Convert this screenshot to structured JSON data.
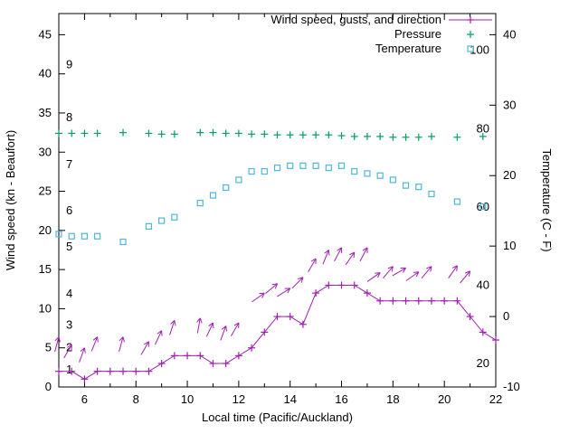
{
  "chart_data": {
    "type": "line",
    "title": "",
    "xlabel": "Local time (Pacific/Auckland)",
    "ylabel_left": "Wind speed (kn - Beaufort)",
    "ylabel_right": "Temperature (C - F)",
    "xlim": [
      5,
      22
    ],
    "x_major_ticks": [
      6,
      8,
      10,
      12,
      14,
      16,
      18,
      20,
      22
    ],
    "ylim_left": [
      0,
      47.7
    ],
    "y_left_ticks": [
      0,
      5,
      10,
      15,
      20,
      25,
      30,
      35,
      40,
      45
    ],
    "ylim_right": [
      -10,
      43
    ],
    "y_right_ticks": [
      -10,
      0,
      10,
      20,
      30,
      40
    ],
    "grid": false,
    "legend_position": "top-right-inside",
    "colors": {
      "wind": "#a020b0",
      "pressure": "#009e60",
      "temperature": "#4fb6d8",
      "axis": "#000000",
      "background": "#ffffff"
    },
    "legend": [
      {
        "label": "Wind speed, gusts, and direction",
        "series": "wind"
      },
      {
        "label": "Pressure",
        "series": "pressure"
      },
      {
        "label": "Temperature",
        "series": "temperature"
      }
    ],
    "beaufort_labels": [
      {
        "label": "1",
        "v": 2.2
      },
      {
        "label": "2",
        "v": 5.0
      },
      {
        "label": "3",
        "v": 7.9
      },
      {
        "label": "4",
        "v": 11.9
      },
      {
        "label": "5",
        "v": 17.9
      },
      {
        "label": "6",
        "v": 22.5
      },
      {
        "label": "7",
        "v": 28.4
      },
      {
        "label": "8",
        "v": 34.4
      },
      {
        "label": "9",
        "v": 41.2
      }
    ],
    "fahrenheit_labels": [
      {
        "label": "20",
        "v": 3.0
      },
      {
        "label": "40",
        "v": 13.0
      },
      {
        "label": "60",
        "v": 23.0
      },
      {
        "label": "80",
        "v": 33.0
      },
      {
        "label": "100",
        "v": 43.0
      }
    ],
    "series": {
      "wind_speed": {
        "unit": "kn",
        "x": [
          5,
          5.5,
          6,
          6.5,
          7,
          7.5,
          8,
          8.5,
          9,
          9.5,
          10,
          10.5,
          11,
          11.5,
          12,
          12.5,
          13,
          13.5,
          14,
          14.5,
          15,
          15.5,
          16,
          16.5,
          17,
          17.5,
          18,
          18.5,
          19,
          19.5,
          20,
          20.5,
          21,
          21.5,
          22
        ],
        "kn": [
          2,
          2,
          1,
          2,
          2,
          2,
          2,
          2,
          3,
          4,
          4,
          4,
          3,
          3,
          4,
          5,
          7,
          9,
          9,
          8,
          12,
          13,
          13,
          13,
          12,
          11,
          11,
          11,
          11,
          11,
          11,
          11,
          9,
          7,
          6
        ]
      },
      "gusts": {
        "unit": "kn",
        "x": [
          5,
          5.5,
          6,
          6.5,
          7.5,
          8.5,
          9,
          9.5,
          10.5,
          11,
          11.5,
          12,
          13,
          13.5,
          14,
          14.5,
          15,
          15.5,
          16,
          16.5,
          17,
          17.5,
          18,
          18.5,
          19,
          19.5,
          20.5,
          21
        ],
        "kn": [
          6.4,
          5.4,
          5.0,
          6.4,
          6.4,
          5.8,
          7.2,
          8.5,
          8.8,
          8.2,
          7.8,
          8.2,
          12.0,
          13.2,
          12.6,
          14.0,
          16.4,
          17.5,
          17.8,
          17.2,
          17.8,
          14.6,
          15.4,
          15.2,
          14.7,
          15.4,
          15.5,
          14.8
        ],
        "deg": [
          15,
          30,
          20,
          22,
          15,
          30,
          25,
          18,
          10,
          25,
          20,
          30,
          55,
          50,
          58,
          45,
          30,
          22,
          28,
          35,
          28,
          55,
          40,
          60,
          55,
          40,
          35,
          40
        ]
      },
      "pressure": {
        "note": "plotted position on left axis scale",
        "x": [
          5,
          5.5,
          6,
          6.5,
          7.5,
          8.5,
          9,
          9.5,
          10.5,
          11,
          11.5,
          12,
          12.5,
          13,
          13.5,
          14,
          14.5,
          15,
          15.5,
          16,
          16.5,
          17,
          17.5,
          18,
          18.5,
          19,
          19.5,
          20.5,
          21.5
        ],
        "axis_value": [
          32.4,
          32.4,
          32.4,
          32.4,
          32.5,
          32.4,
          32.3,
          32.3,
          32.5,
          32.5,
          32.4,
          32.4,
          32.3,
          32.3,
          32.2,
          32.2,
          32.2,
          32.2,
          32.2,
          32.1,
          32.0,
          32.0,
          32.0,
          31.9,
          31.9,
          31.9,
          32.0,
          31.9,
          32.0
        ]
      },
      "temperature": {
        "unit": "C",
        "x": [
          5,
          5.5,
          6,
          6.5,
          7.5,
          8.5,
          9,
          9.5,
          10.5,
          11,
          11.5,
          12,
          12.5,
          13,
          13.5,
          14,
          14.5,
          15,
          15.5,
          16,
          16.5,
          17,
          17.5,
          18,
          18.5,
          19,
          19.5,
          20.5,
          21.5
        ],
        "c": [
          11.7,
          11.4,
          11.4,
          11.4,
          10.6,
          12.8,
          13.6,
          14.1,
          16.1,
          17.2,
          18.3,
          19.4,
          20.6,
          20.6,
          21.1,
          21.4,
          21.4,
          21.4,
          21.1,
          21.4,
          20.6,
          20.3,
          20.0,
          19.4,
          18.6,
          18.4,
          17.4,
          16.3,
          15.6
        ]
      }
    }
  }
}
